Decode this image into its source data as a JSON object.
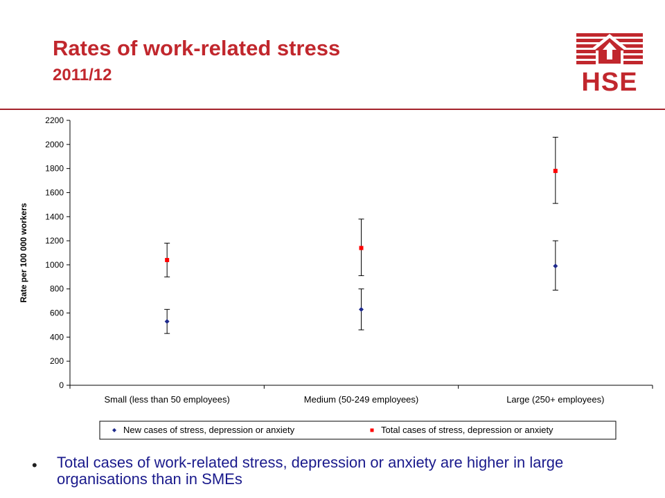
{
  "header": {
    "title": "Rates of work-related stress",
    "subtitle": "2011/12",
    "logo_text": "HSE"
  },
  "colors": {
    "brand_red": "#c1272d",
    "new_cases": "#1f2a8c",
    "total_cases": "#ff0000",
    "bullet_text": "#1a1a8c"
  },
  "chart_data": {
    "type": "scatter",
    "categories": [
      "Small (less than 50 employees)",
      "Medium (50-249 employees)",
      "Large (250+ employees)"
    ],
    "ylabel": "Rate per 100 000 workers",
    "ylim": [
      0,
      2200
    ],
    "yticks": [
      0,
      200,
      400,
      600,
      800,
      1000,
      1200,
      1400,
      1600,
      1800,
      2000,
      2200
    ],
    "grid": false,
    "legend_position": "bottom",
    "series": [
      {
        "name": "New cases of stress, depression or anxiety",
        "marker": "diamond",
        "values": [
          530,
          630,
          990
        ],
        "lower": [
          430,
          460,
          790
        ],
        "upper": [
          630,
          800,
          1200
        ]
      },
      {
        "name": "Total cases of stress, depression or anxiety",
        "marker": "square",
        "values": [
          1040,
          1140,
          1780
        ],
        "lower": [
          900,
          910,
          1510
        ],
        "upper": [
          1180,
          1380,
          2060
        ]
      }
    ]
  },
  "bullets": [
    "Total cases of work-related stress, depression or anxiety are higher in large organisations than in SMEs"
  ]
}
